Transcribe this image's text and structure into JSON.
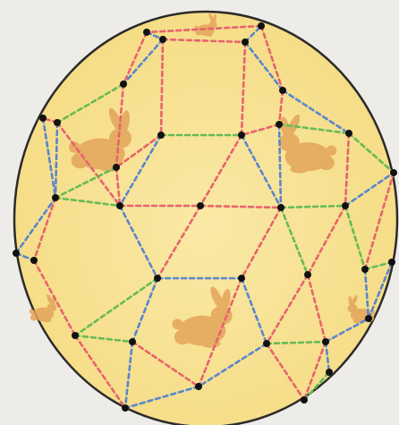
{
  "background_color": "#f4f2ee",
  "board": {
    "shape": "circle",
    "fill_color": "#f5dc85",
    "fill_center_color": "#fae9a6",
    "border_color": "#2b2b2b"
  },
  "edge_colors": {
    "red": "#e8636e",
    "blue": "#5a86cc",
    "green": "#66bb55"
  },
  "node_color": "#111111",
  "decoration": {
    "icon": "rabbit-icon",
    "color": "#e3a55a",
    "count": 6
  }
}
